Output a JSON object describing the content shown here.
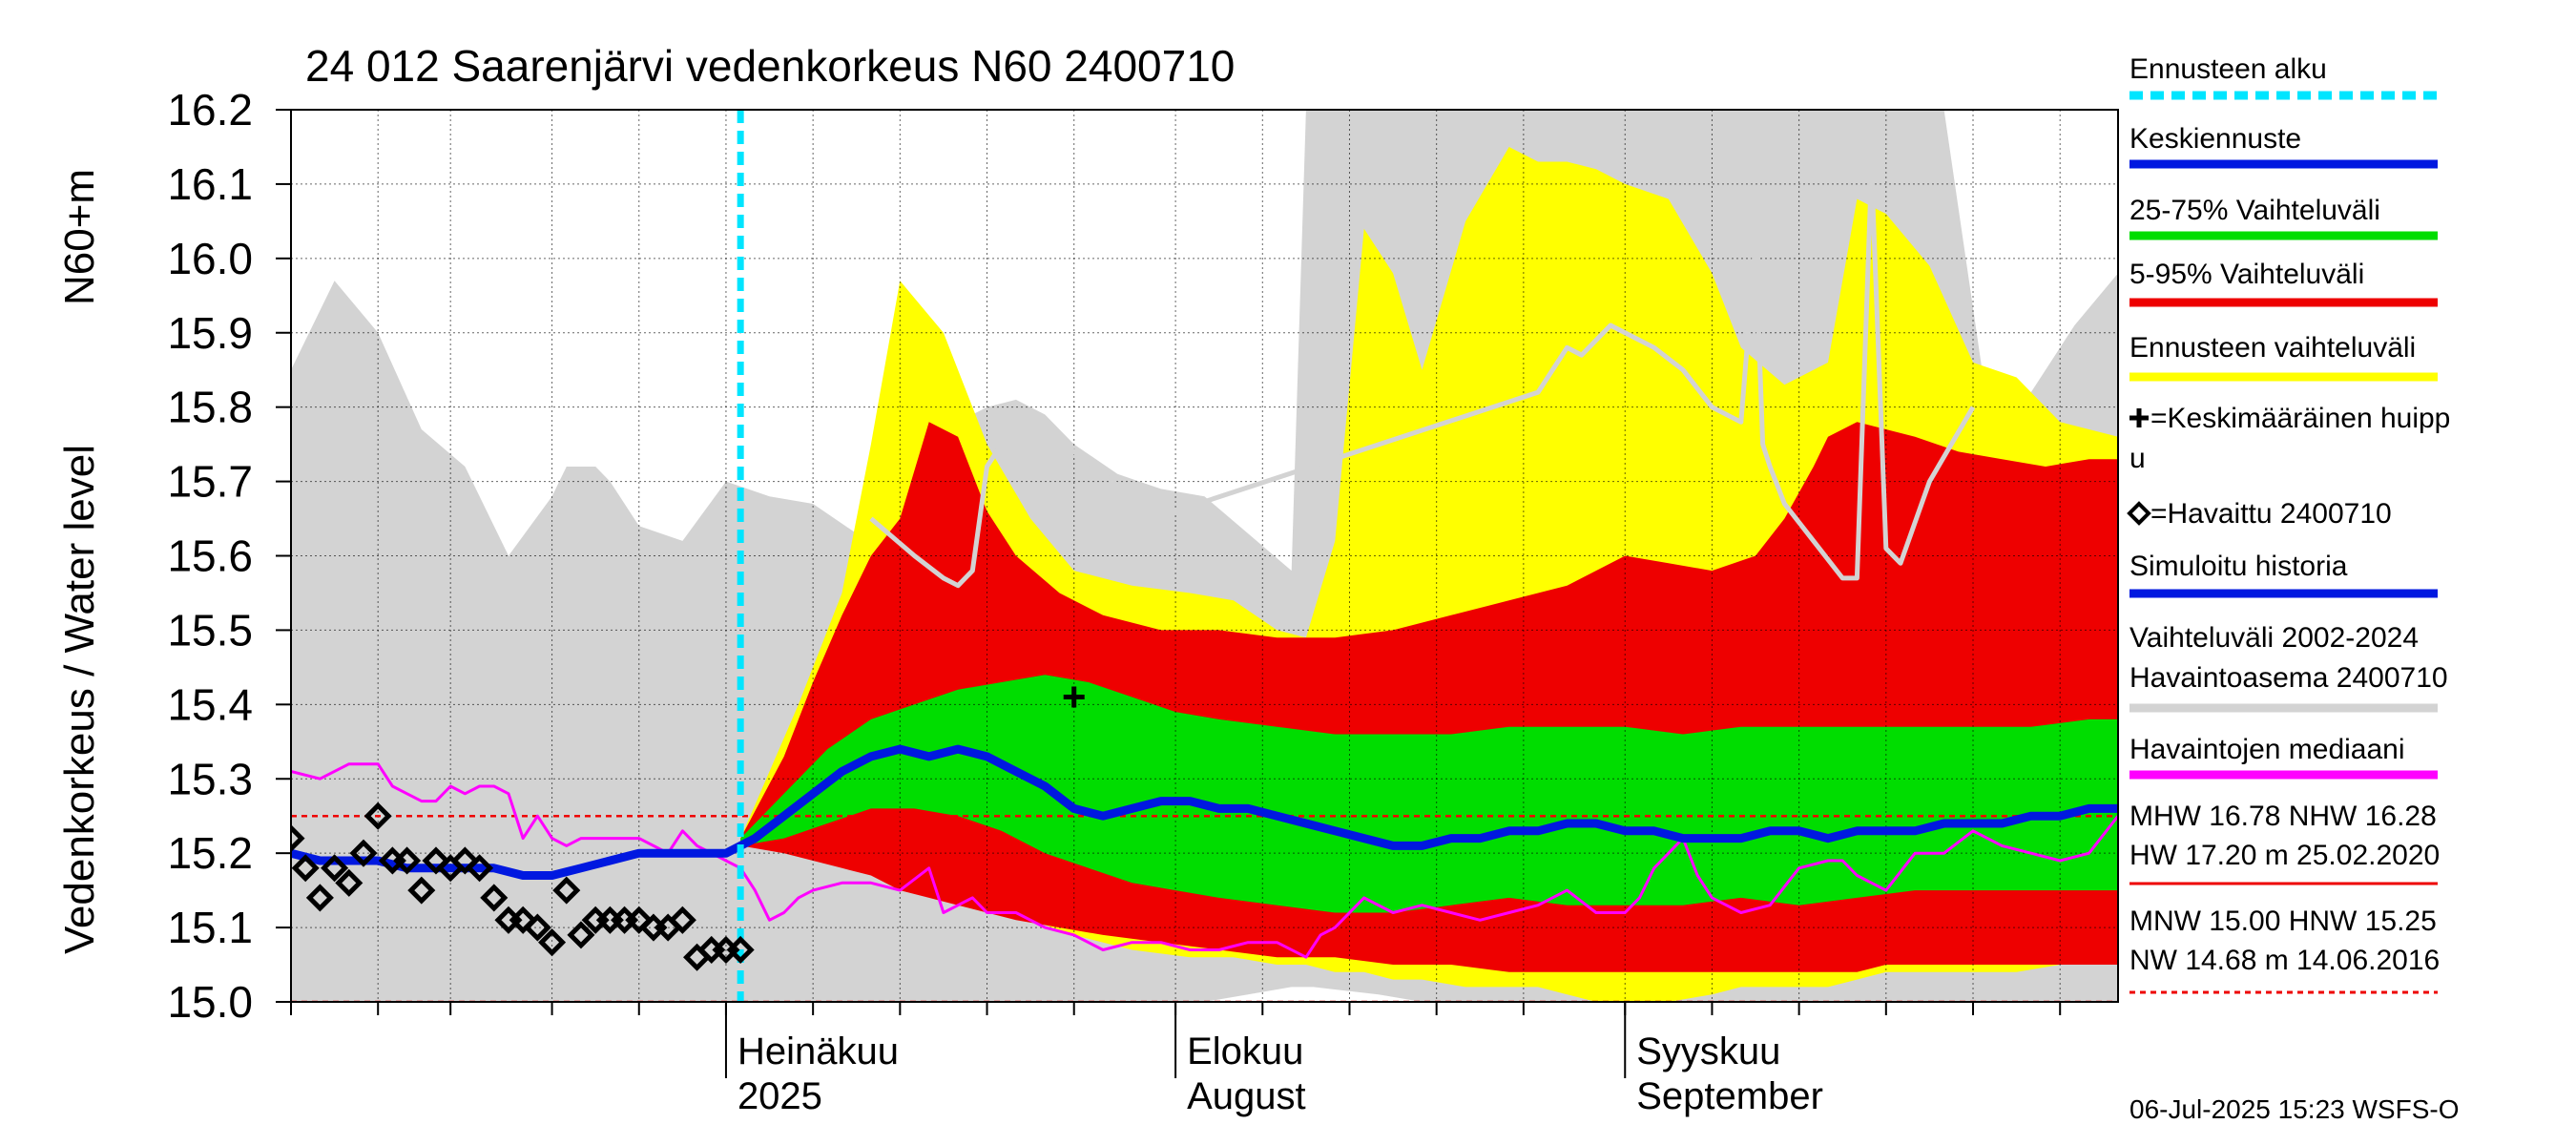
{
  "chart_data": {
    "type": "line",
    "title": "24 012 Saarenjärvi vedenkorkeus N60 2400710",
    "ylabel_main": "Vedenkorkeus / Water level",
    "ylabel_unit": "N60+m",
    "ylim": [
      15.0,
      16.2
    ],
    "y_ticks": [
      "15.0",
      "15.1",
      "15.2",
      "15.3",
      "15.4",
      "15.5",
      "15.6",
      "15.7",
      "15.8",
      "15.9",
      "16.0",
      "16.1",
      "16.2"
    ],
    "x_range_days": [
      0,
      126
    ],
    "month_labels": [
      {
        "day": 30,
        "line1": "Heinäkuu",
        "line2": "2025"
      },
      {
        "day": 61,
        "line1": "Elokuu",
        "line2": "August"
      },
      {
        "day": 92,
        "line1": "Syyskuu",
        "line2": "September"
      }
    ],
    "forecast_start_day": 31,
    "grid": true,
    "legend_position": "right",
    "legend": [
      {
        "key": "start",
        "label": "Ennusteen alku",
        "color": "#00e5ff",
        "style": "dash"
      },
      {
        "key": "mean",
        "label": "Keskiennuste",
        "color": "#0018e0",
        "style": "line"
      },
      {
        "key": "p25_75",
        "label": "25-75% Vaihteluväli",
        "color": "#00dd00",
        "style": "line"
      },
      {
        "key": "p5_95",
        "label": "5-95% Vaihteluväli",
        "color": "#ee0000",
        "style": "line"
      },
      {
        "key": "range",
        "label": "Ennusteen vaihteluväli",
        "color": "#ffff00",
        "style": "line"
      },
      {
        "key": "peak",
        "label": "=Keskimääräinen huippu",
        "style": "plus"
      },
      {
        "key": "obs",
        "label": "=Havaittu 2400710",
        "style": "diamond"
      },
      {
        "key": "sim",
        "label": "Simuloitu historia",
        "color": "#0018e0",
        "style": "line"
      },
      {
        "key": "hist",
        "label": "Vaihteluväli 2002-2024",
        "label2": " Havaintoasema 2400710",
        "color": "#d3d3d3",
        "style": "line"
      },
      {
        "key": "median",
        "label": "Havaintojen mediaani",
        "color": "#ff00ff",
        "style": "line"
      }
    ],
    "stats": {
      "line1": "MHW  16.78 NHW  16.28",
      "line2": "HW  17.20 m 25.02.2020",
      "line3": "MNW  15.00 HNW  15.25",
      "line4": "NW  14.68 m 14.06.2016"
    },
    "reference_lines": [
      {
        "name": "HNW",
        "value": 15.25,
        "color": "#ee0000",
        "style": "dash"
      },
      {
        "name": "MNW",
        "value": 15.0,
        "color": "#ee0000",
        "style": "dash"
      }
    ],
    "footer": "06-Jul-2025 15:23 WSFS-O",
    "series": {
      "hist_band": {
        "x": [
          0,
          3,
          6,
          9,
          12,
          15,
          18,
          19,
          21,
          22,
          24,
          27,
          30,
          33,
          36,
          39,
          42,
          45,
          48,
          50,
          52,
          54,
          57,
          60,
          63,
          66,
          69,
          70,
          70.5,
          75,
          78,
          81,
          84,
          87,
          90,
          93,
          96,
          99,
          102,
          105,
          108,
          111,
          114,
          117,
          120,
          123,
          126
        ],
        "low": [
          15.0,
          15.0,
          15.0,
          15.0,
          15.0,
          15.0,
          15.0,
          15.0,
          15.0,
          15.0,
          15.0,
          15.0,
          15.0,
          15.0,
          15.0,
          15.0,
          15.0,
          15.0,
          15.0,
          15.0,
          15.0,
          15.0,
          15.0,
          15.0,
          15.0,
          15.01,
          15.02,
          15.02,
          15.02,
          15.01,
          15.0,
          15.0,
          15.0,
          15.0,
          15.0,
          15.0,
          15.0,
          15.0,
          15.0,
          15.0,
          15.0,
          15.0,
          15.0,
          15.0,
          15.0,
          15.0,
          15.0
        ],
        "high": [
          15.85,
          15.97,
          15.9,
          15.77,
          15.72,
          15.6,
          15.68,
          15.72,
          15.72,
          15.7,
          15.64,
          15.62,
          15.7,
          15.68,
          15.67,
          15.63,
          15.61,
          15.77,
          15.8,
          15.81,
          15.79,
          15.75,
          15.71,
          15.69,
          15.68,
          15.63,
          15.58,
          16.2,
          16.2,
          16.2,
          16.2,
          16.2,
          16.2,
          16.2,
          16.2,
          16.2,
          16.2,
          16.2,
          16.2,
          16.2,
          16.2,
          16.2,
          16.2,
          15.8,
          15.82,
          15.91,
          15.98
        ]
      },
      "hist_mean_line": {
        "x": [
          40,
          43,
          45,
          46,
          47,
          48,
          50,
          52,
          54,
          56,
          58,
          61,
          86,
          88,
          89,
          91,
          94,
          96,
          98,
          100,
          101,
          101.5,
          102,
          103,
          105,
          107,
          108,
          109,
          110,
          111,
          113,
          116
        ],
        "y": [
          15.65,
          15.6,
          15.57,
          15.56,
          15.58,
          15.72,
          15.78,
          15.77,
          15.74,
          15.71,
          15.68,
          15.66,
          15.82,
          15.88,
          15.87,
          15.91,
          15.88,
          15.85,
          15.8,
          15.78,
          16.02,
          15.75,
          15.72,
          15.67,
          15.62,
          15.57,
          15.57,
          16.12,
          15.61,
          15.59,
          15.7,
          15.8
        ]
      },
      "range_band": {
        "x": [
          31,
          35,
          38,
          40,
          42,
          45,
          48,
          51,
          54,
          58,
          62,
          65,
          68,
          70,
          72,
          74,
          76,
          78,
          81,
          84,
          86,
          88,
          90,
          92,
          95,
          98,
          100,
          103,
          106,
          108,
          110,
          113,
          116,
          119,
          122,
          124,
          126
        ],
        "low": [
          15.21,
          15.2,
          15.19,
          15.18,
          15.17,
          15.15,
          15.13,
          15.11,
          15.09,
          15.07,
          15.06,
          15.06,
          15.05,
          15.05,
          15.04,
          15.04,
          15.03,
          15.03,
          15.02,
          15.02,
          15.02,
          15.01,
          15.0,
          15.0,
          15.0,
          15.01,
          15.02,
          15.02,
          15.02,
          15.03,
          15.04,
          15.04,
          15.04,
          15.04,
          15.05,
          15.05,
          15.05
        ],
        "high": [
          15.22,
          15.4,
          15.55,
          15.75,
          15.97,
          15.9,
          15.75,
          15.65,
          15.58,
          15.56,
          15.55,
          15.54,
          15.5,
          15.49,
          15.62,
          16.04,
          15.98,
          15.85,
          16.05,
          16.15,
          16.13,
          16.13,
          16.12,
          16.1,
          16.08,
          15.98,
          15.88,
          15.83,
          15.86,
          16.08,
          16.06,
          15.99,
          15.86,
          15.84,
          15.78,
          15.77,
          15.76
        ]
      },
      "p5_95_band": {
        "x": [
          31,
          34,
          36,
          38,
          40,
          42,
          44,
          46,
          48,
          50,
          53,
          56,
          60,
          64,
          68,
          72,
          76,
          80,
          84,
          88,
          92,
          95,
          98,
          101,
          103,
          105,
          106,
          108,
          110,
          112,
          115,
          118,
          121,
          124,
          126
        ],
        "low": [
          15.21,
          15.2,
          15.19,
          15.18,
          15.17,
          15.15,
          15.14,
          15.13,
          15.12,
          15.11,
          15.1,
          15.09,
          15.08,
          15.07,
          15.06,
          15.06,
          15.05,
          15.05,
          15.04,
          15.04,
          15.04,
          15.04,
          15.04,
          15.04,
          15.04,
          15.04,
          15.04,
          15.04,
          15.05,
          15.05,
          15.05,
          15.05,
          15.05,
          15.05,
          15.05
        ],
        "high": [
          15.22,
          15.33,
          15.43,
          15.52,
          15.6,
          15.65,
          15.78,
          15.76,
          15.66,
          15.6,
          15.55,
          15.52,
          15.5,
          15.5,
          15.49,
          15.49,
          15.5,
          15.52,
          15.54,
          15.56,
          15.6,
          15.59,
          15.58,
          15.6,
          15.65,
          15.72,
          15.76,
          15.78,
          15.77,
          15.76,
          15.74,
          15.73,
          15.72,
          15.73,
          15.73
        ]
      },
      "p25_75_band": {
        "x": [
          31,
          34,
          37,
          40,
          43,
          46,
          49,
          52,
          55,
          58,
          61,
          64,
          68,
          72,
          76,
          80,
          84,
          88,
          92,
          96,
          100,
          104,
          108,
          112,
          116,
          120,
          124,
          126
        ],
        "low": [
          15.21,
          15.22,
          15.24,
          15.26,
          15.26,
          15.25,
          15.23,
          15.2,
          15.18,
          15.16,
          15.15,
          15.14,
          15.13,
          15.12,
          15.12,
          15.13,
          15.14,
          15.13,
          15.13,
          15.13,
          15.14,
          15.13,
          15.14,
          15.15,
          15.15,
          15.15,
          15.15,
          15.15
        ],
        "high": [
          15.22,
          15.28,
          15.34,
          15.38,
          15.4,
          15.42,
          15.43,
          15.44,
          15.43,
          15.41,
          15.39,
          15.38,
          15.37,
          15.36,
          15.36,
          15.36,
          15.37,
          15.37,
          15.37,
          15.36,
          15.37,
          15.37,
          15.37,
          15.37,
          15.37,
          15.37,
          15.38,
          15.38
        ]
      },
      "median": {
        "x": [
          0,
          2,
          4,
          6,
          7,
          8,
          9,
          10,
          11,
          12,
          13,
          14,
          15,
          16,
          17,
          18,
          19,
          20,
          22,
          24,
          26,
          27,
          28,
          29,
          30,
          31,
          32,
          33,
          34,
          35,
          36,
          38,
          40,
          42,
          44,
          45,
          46,
          47,
          48,
          50,
          52,
          54,
          56,
          58,
          60,
          62,
          64,
          66,
          68,
          70,
          71,
          72,
          74,
          76,
          78,
          80,
          82,
          84,
          86,
          88,
          90,
          92,
          93,
          94,
          96,
          97,
          98,
          100,
          102,
          104,
          106,
          107,
          108,
          110,
          112,
          114,
          116,
          118,
          120,
          122,
          124,
          126
        ],
        "y": [
          15.31,
          15.3,
          15.32,
          15.32,
          15.29,
          15.28,
          15.27,
          15.27,
          15.29,
          15.28,
          15.29,
          15.29,
          15.28,
          15.22,
          15.25,
          15.22,
          15.21,
          15.22,
          15.22,
          15.22,
          15.2,
          15.23,
          15.21,
          15.2,
          15.19,
          15.18,
          15.15,
          15.11,
          15.12,
          15.14,
          15.15,
          15.16,
          15.16,
          15.15,
          15.18,
          15.12,
          15.13,
          15.14,
          15.12,
          15.12,
          15.1,
          15.09,
          15.07,
          15.08,
          15.08,
          15.07,
          15.07,
          15.08,
          15.08,
          15.06,
          15.09,
          15.1,
          15.14,
          15.12,
          15.13,
          15.12,
          15.11,
          15.12,
          15.13,
          15.15,
          15.12,
          15.12,
          15.14,
          15.18,
          15.22,
          15.17,
          15.14,
          15.12,
          15.13,
          15.18,
          15.19,
          15.19,
          15.17,
          15.15,
          15.2,
          15.2,
          15.23,
          15.21,
          15.2,
          15.19,
          15.2,
          15.25
        ]
      },
      "mean": {
        "x": [
          0,
          2,
          4,
          6,
          8,
          10,
          12,
          14,
          16,
          18,
          20,
          22,
          24,
          26,
          28,
          30,
          31,
          32,
          34,
          36,
          38,
          40,
          42,
          44,
          46,
          48,
          50,
          52,
          54,
          56,
          58,
          60,
          62,
          64,
          66,
          68,
          70,
          72,
          74,
          76,
          78,
          80,
          82,
          84,
          86,
          88,
          90,
          92,
          94,
          96,
          98,
          100,
          102,
          104,
          106,
          108,
          110,
          112,
          114,
          116,
          118,
          120,
          122,
          124,
          126
        ],
        "y": [
          15.2,
          15.19,
          15.19,
          15.19,
          15.18,
          15.18,
          15.18,
          15.18,
          15.17,
          15.17,
          15.18,
          15.19,
          15.2,
          15.2,
          15.2,
          15.2,
          15.21,
          15.22,
          15.25,
          15.28,
          15.31,
          15.33,
          15.34,
          15.33,
          15.34,
          15.33,
          15.31,
          15.29,
          15.26,
          15.25,
          15.26,
          15.27,
          15.27,
          15.26,
          15.26,
          15.25,
          15.24,
          15.23,
          15.22,
          15.21,
          15.21,
          15.22,
          15.22,
          15.23,
          15.23,
          15.24,
          15.24,
          15.23,
          15.23,
          15.22,
          15.22,
          15.22,
          15.23,
          15.23,
          15.22,
          15.23,
          15.23,
          15.23,
          15.24,
          15.24,
          15.24,
          15.25,
          15.25,
          15.26,
          15.26
        ]
      },
      "observed": {
        "x": [
          0,
          1,
          2,
          3,
          4,
          5,
          6,
          7,
          8,
          9,
          10,
          11,
          12,
          13,
          14,
          15,
          16,
          17,
          18,
          19,
          20,
          21,
          22,
          23,
          24,
          25,
          26,
          27,
          28,
          29,
          30,
          31
        ],
        "y": [
          15.22,
          15.18,
          15.14,
          15.18,
          15.16,
          15.2,
          15.25,
          15.19,
          15.19,
          15.15,
          15.19,
          15.18,
          15.19,
          15.18,
          15.14,
          15.11,
          15.11,
          15.1,
          15.08,
          15.15,
          15.09,
          15.11,
          15.11,
          15.11,
          15.11,
          15.1,
          15.1,
          15.11,
          15.06,
          15.07,
          15.07,
          15.07
        ]
      },
      "avg_peak": {
        "x": 54,
        "y": 15.41
      }
    }
  }
}
